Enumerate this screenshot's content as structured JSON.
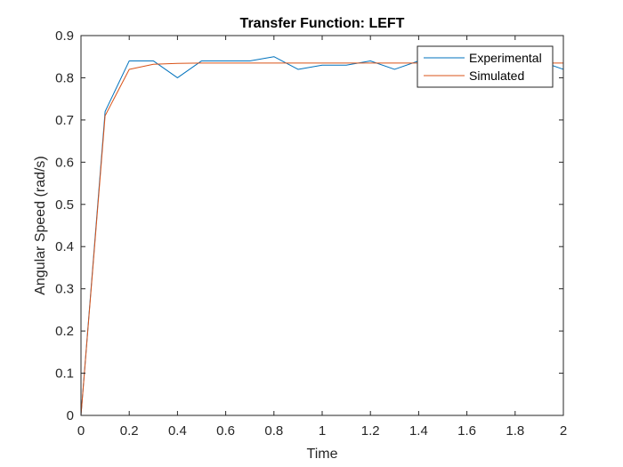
{
  "chart_data": {
    "type": "line",
    "title": "Transfer Function: LEFT",
    "xlabel": "Time",
    "ylabel": "Angular Speed (rad/s)",
    "xlim": [
      0,
      2
    ],
    "ylim": [
      0,
      0.9
    ],
    "xticks": [
      0,
      0.2,
      0.4,
      0.6,
      0.8,
      1,
      1.2,
      1.4,
      1.6,
      1.8,
      2
    ],
    "xtick_labels": [
      "0",
      "0.2",
      "0.4",
      "0.6",
      "0.8",
      "1",
      "1.2",
      "1.4",
      "1.6",
      "1.8",
      "2"
    ],
    "yticks": [
      0,
      0.1,
      0.2,
      0.3,
      0.4,
      0.5,
      0.6,
      0.7,
      0.8,
      0.9
    ],
    "ytick_labels": [
      "0",
      "0.1",
      "0.2",
      "0.3",
      "0.4",
      "0.5",
      "0.6",
      "0.7",
      "0.8",
      "0.9"
    ],
    "grid": false,
    "legend_position": "top-right",
    "series": [
      {
        "name": "Experimental",
        "color": "#0072BD",
        "x": [
          0,
          0.1,
          0.2,
          0.3,
          0.4,
          0.5,
          0.6,
          0.7,
          0.8,
          0.9,
          1.0,
          1.1,
          1.2,
          1.3,
          1.4,
          1.5,
          1.6,
          1.7,
          1.8,
          1.9,
          2.0
        ],
        "y": [
          0,
          0.72,
          0.84,
          0.84,
          0.8,
          0.84,
          0.84,
          0.84,
          0.85,
          0.82,
          0.83,
          0.83,
          0.84,
          0.82,
          0.84,
          0.84,
          0.84,
          0.84,
          0.84,
          0.84,
          0.82
        ]
      },
      {
        "name": "Simulated",
        "color": "#D95319",
        "x": [
          0,
          0.1,
          0.2,
          0.3,
          0.4,
          0.5,
          0.6,
          0.7,
          0.8,
          0.9,
          1.0,
          1.1,
          1.2,
          1.3,
          1.4,
          1.5,
          1.6,
          1.7,
          1.8,
          1.9,
          2.0
        ],
        "y": [
          0,
          0.71,
          0.82,
          0.832,
          0.834,
          0.835,
          0.835,
          0.835,
          0.835,
          0.835,
          0.835,
          0.835,
          0.835,
          0.835,
          0.835,
          0.835,
          0.835,
          0.835,
          0.835,
          0.835,
          0.835
        ]
      }
    ]
  }
}
